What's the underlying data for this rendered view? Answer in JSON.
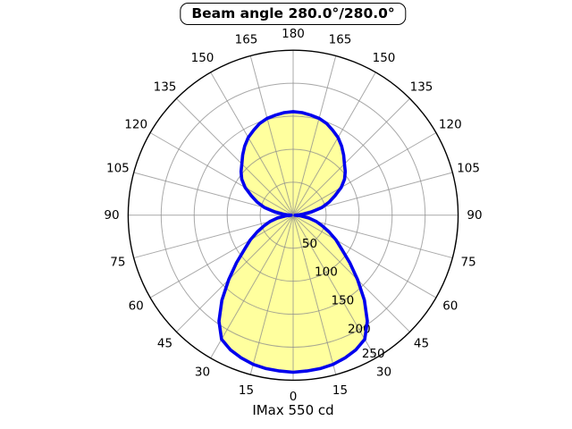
{
  "title": "Beam angle 280.0°/280.0°",
  "footer": "IMax 550 cd",
  "chart_data": {
    "type": "line",
    "subtype": "polar-intensity-distribution",
    "title": "Beam angle 280.0°/280.0°",
    "annotation": "IMax 550 cd",
    "imax_cd": 550,
    "beam_angle_deg": "280.0/280.0",
    "angle_tick_step_deg": 15,
    "angle_labels": [
      0,
      15,
      30,
      45,
      60,
      75,
      90,
      105,
      120,
      135,
      150,
      165,
      180
    ],
    "angle_labels_both_sides": true,
    "radial_ticks": [
      50,
      100,
      150,
      200,
      250
    ],
    "radial_label_angle_deg": 30,
    "rmax": 250,
    "grid": true,
    "series": [
      {
        "name": "luminous-intensity",
        "symmetric": true,
        "angles_deg": [
          0,
          5,
          10,
          15,
          20,
          25,
          30,
          35,
          40,
          45,
          50,
          55,
          60,
          65,
          70,
          75,
          80,
          85,
          90,
          95,
          100,
          105,
          110,
          115,
          120,
          125,
          130,
          135,
          140,
          145,
          150,
          155,
          160,
          165,
          170,
          175,
          180
        ],
        "values_cd": [
          238,
          237,
          236,
          234,
          230,
          225,
          217,
          196,
          168,
          138,
          112,
          90,
          75,
          60,
          47,
          36,
          24,
          12,
          3,
          14,
          28,
          45,
          58,
          70,
          84,
          95,
          103,
          110,
          119,
          128,
          136,
          142,
          148,
          152,
          154,
          156,
          157
        ]
      }
    ],
    "colors": {
      "curve": "#0000EE",
      "fill": "#FFFF9E",
      "grid": "#8C8C8C",
      "axis": "#000000",
      "background": "#FFFFFF"
    }
  }
}
